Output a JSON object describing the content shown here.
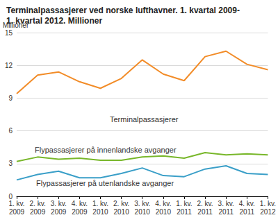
{
  "chart_data": {
    "type": "line",
    "title": "Terminalpassasjerer ved norske lufthavner. 1. kvartal 2009-\n1. kvartal 2012. Millioner",
    "ylabel": "Millioner",
    "categories": [
      "1. kv. 2009",
      "2. kv. 2009",
      "3. kv. 2009",
      "4. kv. 2009",
      "1. kv. 2010",
      "2. kv. 2010",
      "3. kv. 2010",
      "4. kv. 2010",
      "1. kv. 2011",
      "2. kv. 2011",
      "3. kv. 2011",
      "4. kv. 2011",
      "1. kv. 2012"
    ],
    "series": [
      {
        "name": "Terminalpassasjerer",
        "color": "#f28c28",
        "values": [
          9.4,
          11.1,
          11.4,
          10.5,
          9.9,
          10.8,
          12.5,
          11.2,
          10.6,
          12.8,
          13.3,
          12.1,
          11.6
        ]
      },
      {
        "name": "Flypassasjerer på innenlandske avganger",
        "color": "#78b72a",
        "values": [
          3.2,
          3.6,
          3.4,
          3.5,
          3.3,
          3.3,
          3.6,
          3.7,
          3.5,
          4.0,
          3.8,
          3.9,
          3.8
        ]
      },
      {
        "name": "Flypassasjerer på utenlandske avganger",
        "color": "#3a9fc8",
        "values": [
          1.5,
          2.0,
          2.3,
          1.7,
          1.7,
          2.1,
          2.6,
          1.9,
          1.8,
          2.5,
          2.8,
          2.1,
          2.0
        ]
      }
    ],
    "ylim": [
      0,
      15
    ],
    "yticks": [
      0,
      3,
      6,
      9,
      12,
      15
    ],
    "grid": true
  }
}
